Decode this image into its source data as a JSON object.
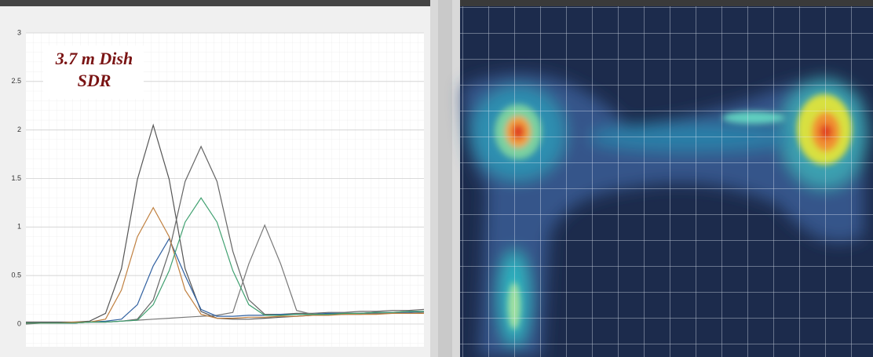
{
  "chart_data": {
    "type": "line",
    "annotation": [
      "3.7 m Dish",
      "SDR"
    ],
    "x": [
      0,
      4,
      8,
      12,
      16,
      20,
      24,
      28,
      32,
      36,
      40,
      44,
      48,
      52,
      56,
      60,
      64,
      68,
      72,
      76,
      80,
      84,
      88,
      92,
      96,
      100
    ],
    "xlim": [
      0,
      100
    ],
    "ylim": [
      0,
      3
    ],
    "yticks": [
      0,
      0.5,
      1,
      1.5,
      2,
      2.5,
      3
    ],
    "grid": true,
    "series": [
      {
        "color": "#555555",
        "values": [
          0.02,
          0.02,
          0.02,
          0.02,
          0.03,
          0.11,
          0.57,
          1.49,
          2.05,
          1.49,
          0.57,
          0.13,
          0.06,
          0.05,
          0.05,
          0.06,
          0.07,
          0.08,
          0.09,
          0.1,
          0.1,
          0.11,
          0.12,
          0.12,
          0.13,
          0.13
        ]
      },
      {
        "color": "#666666",
        "values": [
          0,
          0.01,
          0.01,
          0.01,
          0.02,
          0.02,
          0.03,
          0.05,
          0.25,
          0.75,
          1.47,
          1.83,
          1.47,
          0.75,
          0.25,
          0.1,
          0.1,
          0.11,
          0.11,
          0.12,
          0.12,
          0.13,
          0.13,
          0.14,
          0.14,
          0.15
        ]
      },
      {
        "color": "#777777",
        "values": [
          0.01,
          0.01,
          0.01,
          0.01,
          0.02,
          0.02,
          0.03,
          0.04,
          0.05,
          0.06,
          0.07,
          0.08,
          0.09,
          0.12,
          0.62,
          1.02,
          0.62,
          0.14,
          0.1,
          0.1,
          0.1,
          0.1,
          0.11,
          0.11,
          0.11,
          0.12
        ]
      },
      {
        "color": "#3060a0",
        "values": [
          0.01,
          0.01,
          0.01,
          0.01,
          0.02,
          0.03,
          0.05,
          0.2,
          0.6,
          0.88,
          0.5,
          0.15,
          0.08,
          0.08,
          0.09,
          0.09,
          0.1,
          0.1,
          0.1,
          0.11,
          0.11,
          0.11,
          0.12,
          0.12,
          0.12,
          0.13
        ]
      },
      {
        "color": "#c08040",
        "values": [
          0.01,
          0.01,
          0.01,
          0.02,
          0.02,
          0.05,
          0.35,
          0.9,
          1.2,
          0.9,
          0.35,
          0.1,
          0.06,
          0.06,
          0.07,
          0.07,
          0.08,
          0.08,
          0.09,
          0.09,
          0.1,
          0.1,
          0.1,
          0.11,
          0.11,
          0.11
        ]
      },
      {
        "color": "#40a070",
        "values": [
          0.01,
          0.01,
          0.01,
          0.01,
          0.02,
          0.02,
          0.03,
          0.04,
          0.2,
          0.55,
          1.05,
          1.3,
          1.05,
          0.55,
          0.2,
          0.09,
          0.09,
          0.1,
          0.1,
          0.1,
          0.11,
          0.11,
          0.12,
          0.12,
          0.13,
          0.13
        ]
      }
    ]
  }
}
